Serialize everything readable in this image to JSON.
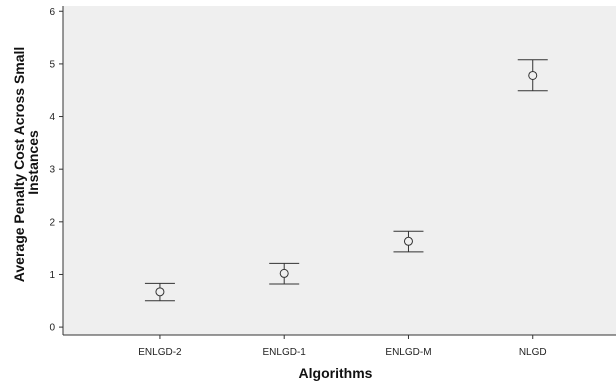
{
  "colors": {
    "plot_background": "#efefef",
    "axis": "#333333",
    "marker": "#333333"
  },
  "chart_data": {
    "type": "scatter",
    "chart_subtype": "error-bar",
    "title": "",
    "xlabel": "Algorithms",
    "ylabel_lines": [
      "Average Penalty Cost Across Small",
      "Instances"
    ],
    "categories": [
      "ENLGD-2",
      "ENLGD-1",
      "ENLGD-M",
      "NLGD"
    ],
    "means": [
      0.67,
      1.02,
      1.63,
      4.78
    ],
    "lower": [
      0.5,
      0.82,
      1.43,
      4.49
    ],
    "upper": [
      0.83,
      1.21,
      1.82,
      5.08
    ],
    "ylim": [
      -0.15,
      6.1
    ],
    "yticks": [
      0,
      1,
      2,
      3,
      4,
      5,
      6
    ],
    "grid": false,
    "legend": "none",
    "marker": "open-circle"
  }
}
